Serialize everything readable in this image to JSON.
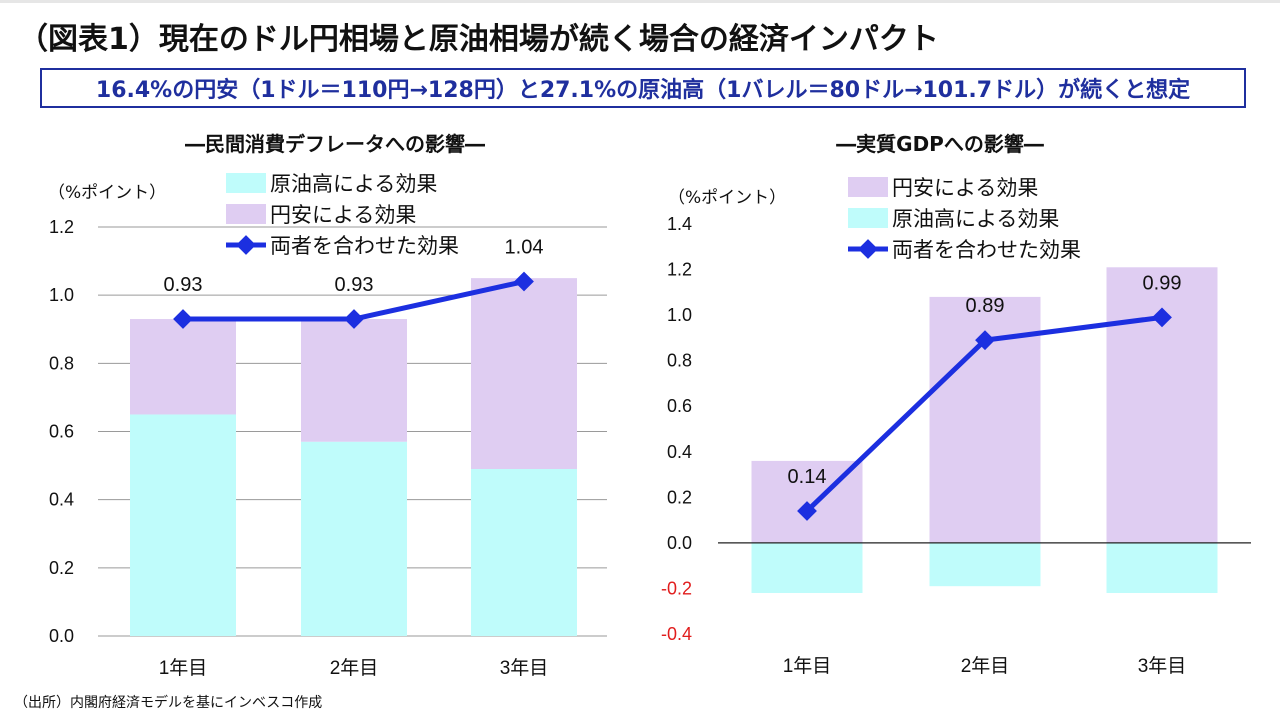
{
  "page": {
    "title": "（図表1）現在のドル円相場と原油相場が続く場合の経済インパクト",
    "subtitle": "16.4%の円安（1ドル＝110円→128円）と27.1%の原油高（1バレル＝80ドル→101.7ドル）が続くと想定",
    "source": "（出所）内閣府経済モデルを基にインベスコ作成"
  },
  "colors": {
    "oil": "#bffcfb",
    "yen": "#dfcdf2",
    "line": "#1c2fe0",
    "grid": "#9a9a9a",
    "axis": "#222222",
    "negative_tick": "#e11d1d",
    "frame": "#1f2f9e"
  },
  "chart_data": [
    {
      "type": "bar",
      "stacked": true,
      "title": "―民間消費デフレータへの影響―",
      "unit_label": "（%ポイント）",
      "categories": [
        "1年目",
        "2年目",
        "3年目"
      ],
      "series": [
        {
          "name": "原油高による効果",
          "color_key": "oil",
          "values": [
            0.65,
            0.57,
            0.49
          ]
        },
        {
          "name": "円安による効果",
          "color_key": "yen",
          "values": [
            0.28,
            0.36,
            0.56
          ]
        }
      ],
      "total_series": {
        "name": "両者を合わせた効果",
        "values": [
          0.93,
          0.93,
          1.04
        ],
        "labels": [
          "0.93",
          "0.93",
          "1.04"
        ]
      },
      "legend_order": [
        "原油高による効果",
        "円安による効果",
        "両者を合わせた効果"
      ],
      "ylim": [
        0.0,
        1.2
      ],
      "yticks": [
        0.0,
        0.2,
        0.4,
        0.6,
        0.8,
        1.0,
        1.2
      ],
      "ytick_labels": [
        "0.0",
        "0.2",
        "0.4",
        "0.6",
        "0.8",
        "1.0",
        "1.2"
      ],
      "grid": true
    },
    {
      "type": "bar",
      "stacked": true,
      "title": "―実質GDPへの影響―",
      "unit_label": "（%ポイント）",
      "categories": [
        "1年目",
        "2年目",
        "3年目"
      ],
      "series": [
        {
          "name": "円安による効果",
          "color_key": "yen",
          "values": [
            0.36,
            1.08,
            1.21
          ]
        },
        {
          "name": "原油高による効果",
          "color_key": "oil",
          "values": [
            -0.22,
            -0.19,
            -0.22
          ]
        }
      ],
      "total_series": {
        "name": "両者を合わせた効果",
        "values": [
          0.14,
          0.89,
          0.99
        ],
        "labels": [
          "0.14",
          "0.89",
          "0.99"
        ]
      },
      "legend_order": [
        "円安による効果",
        "原油高による効果",
        "両者を合わせた効果"
      ],
      "ylim": [
        -0.4,
        1.4
      ],
      "yticks": [
        -0.4,
        -0.2,
        0.0,
        0.2,
        0.4,
        0.6,
        0.8,
        1.0,
        1.2,
        1.4
      ],
      "ytick_labels": [
        "-0.4",
        "-0.2",
        "0.0",
        "0.2",
        "0.4",
        "0.6",
        "0.8",
        "1.0",
        "1.2",
        "1.4"
      ],
      "grid": false
    }
  ]
}
